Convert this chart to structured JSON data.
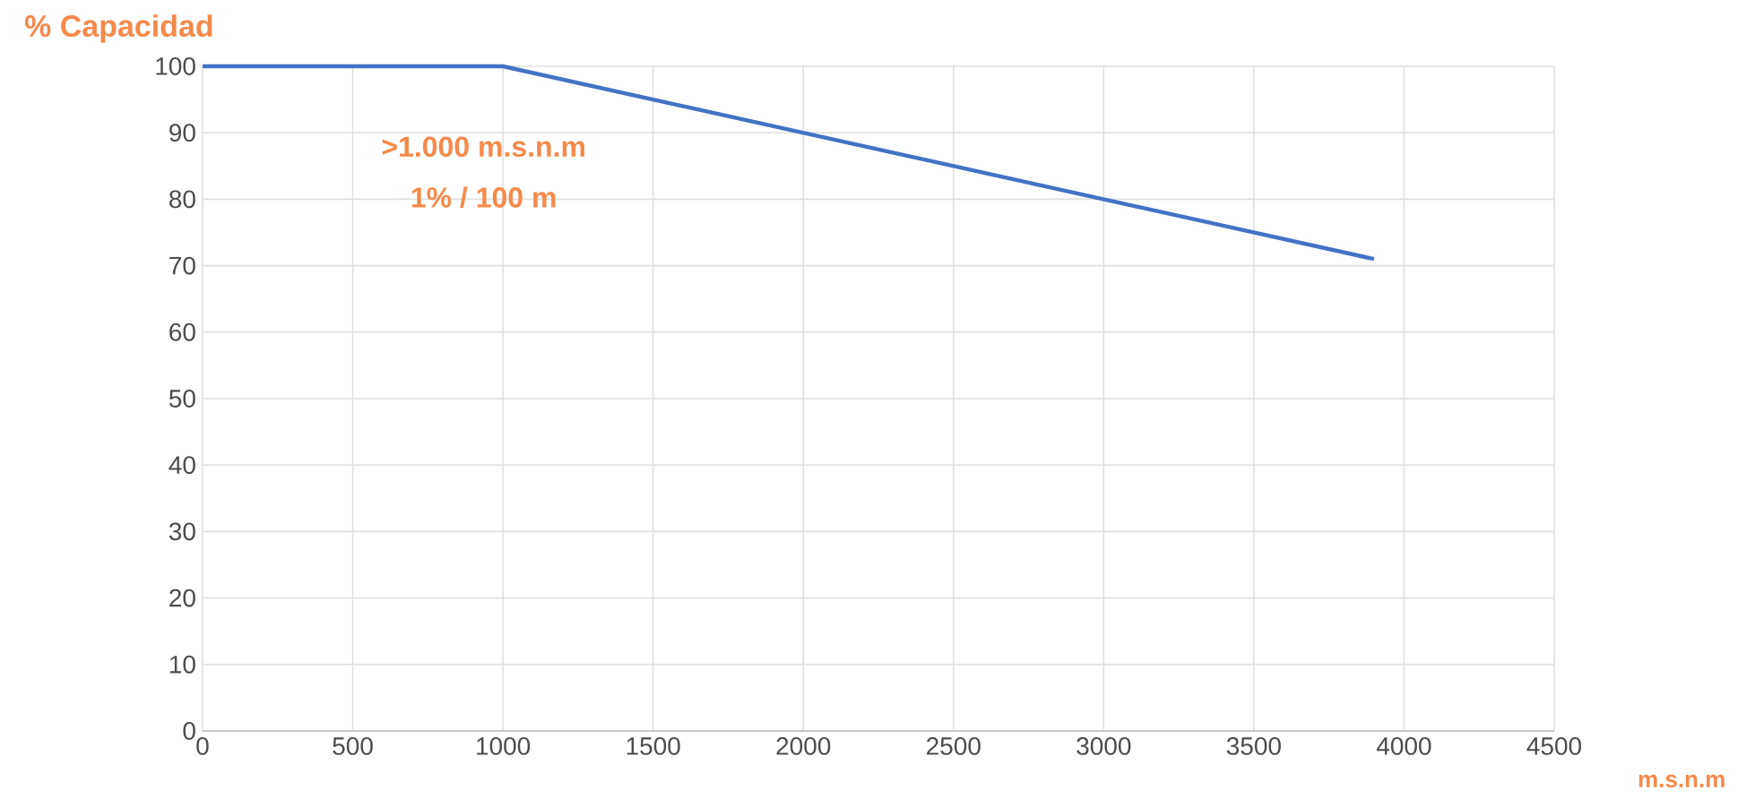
{
  "chart_data": {
    "type": "line",
    "ylabel": "% Capacidad",
    "xlabel": "m.s.n.m",
    "annotations": [
      ">1.000 m.s.n.m",
      "1% / 100 m"
    ],
    "x": [
      0,
      1000,
      3900
    ],
    "series": [
      {
        "color": "#4472c4",
        "values": [
          100,
          100,
          71
        ]
      }
    ],
    "xlim": [
      0,
      4500
    ],
    "xticks": [
      0,
      500,
      1000,
      1500,
      2000,
      2500,
      3000,
      3500,
      4000,
      4500
    ],
    "ylim": [
      0,
      100
    ],
    "yticks": [
      0,
      10,
      20,
      30,
      40,
      50,
      60,
      70,
      80,
      90,
      100
    ],
    "grid": true
  }
}
